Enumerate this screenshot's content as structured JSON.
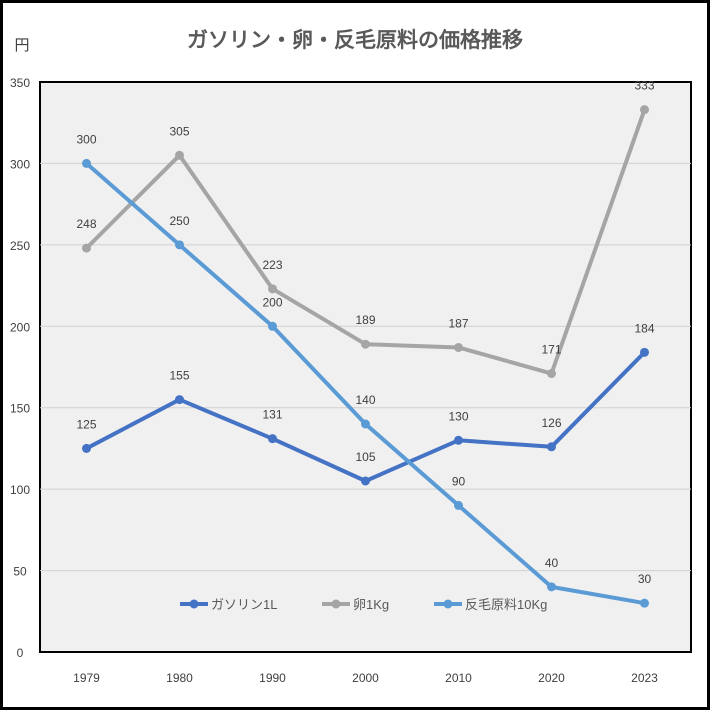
{
  "chart_data": {
    "type": "line",
    "title": "ガソリン・卵・反毛原料の価格推移",
    "ylabel": "円",
    "xlabel": "",
    "categories": [
      "1979",
      "1980",
      "1990",
      "2000",
      "2010",
      "2020",
      "2023"
    ],
    "ylim": [
      0,
      350
    ],
    "yticks": [
      0,
      50,
      100,
      150,
      200,
      250,
      300,
      350
    ],
    "grid": true,
    "legend_position": "bottom-inside",
    "series": [
      {
        "name": "ガソリン1L",
        "color": "#4472C4",
        "values": [
          125,
          155,
          131,
          105,
          130,
          126,
          184
        ]
      },
      {
        "name": "卵1Kg",
        "color": "#A5A5A5",
        "values": [
          248,
          305,
          223,
          189,
          187,
          171,
          333
        ]
      },
      {
        "name": "反毛原料10Kg",
        "color": "#5B9BD5",
        "values": [
          300,
          250,
          200,
          140,
          90,
          40,
          30
        ]
      }
    ],
    "plot_background": "#F0F0F0"
  }
}
